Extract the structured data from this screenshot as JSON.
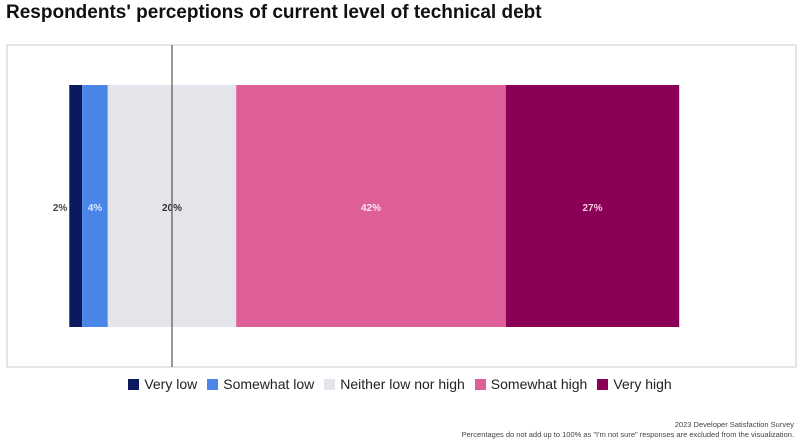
{
  "chart_data": {
    "type": "bar",
    "orientation": "horizontal-stacked-diverging",
    "title": "Respondents' perceptions of current level of technical debt",
    "categories": [
      "Very low",
      "Somewhat low",
      "Neither low nor high",
      "Somewhat high",
      "Very high"
    ],
    "values": [
      2,
      4,
      20,
      42,
      27
    ],
    "labels": [
      "2%",
      "4%",
      "20%",
      "42%",
      "27%"
    ],
    "colors": [
      "#0b1a5c",
      "#4a86e8",
      "#e3e5ea",
      "#de5f98",
      "#8b0057"
    ],
    "label_colors": [
      "#444444",
      "#dde6ff",
      "#333333",
      "#fde4ef",
      "#f5c9df"
    ],
    "legend_placement": "bottom",
    "grid": false
  },
  "footer": {
    "source": "2023 Developer Satisfaction Survey",
    "note": "Percentages do not add up to 100% as \"I'm not sure\" responses are excluded from the visualization."
  }
}
